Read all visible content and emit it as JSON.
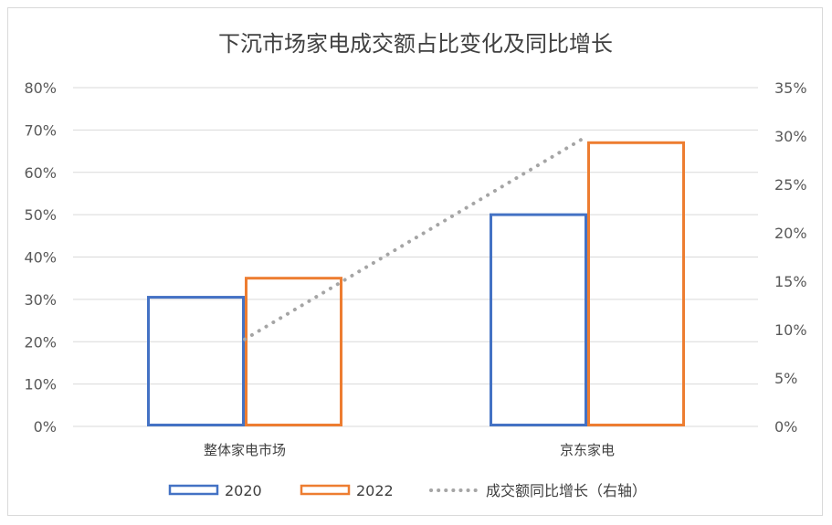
{
  "chart_data": {
    "type": "bar",
    "title": "下沉市场家电成交额占比变化及同比增长",
    "categories": [
      "整体家电市场",
      "京东家电"
    ],
    "series": [
      {
        "name": "2020",
        "type": "bar",
        "axis": "left",
        "values": [
          30.5,
          50
        ],
        "color": "#4472c4"
      },
      {
        "name": "2022",
        "type": "bar",
        "axis": "left",
        "values": [
          35,
          67
        ],
        "color": "#ed7d31"
      },
      {
        "name": "成交额同比增长（右轴）",
        "type": "line",
        "style": "dotted",
        "axis": "right",
        "values": [
          9,
          30
        ],
        "color": "#a5a5a5"
      }
    ],
    "y_left": {
      "ylim": [
        0,
        80
      ],
      "ticks": [
        "0%",
        "10%",
        "20%",
        "30%",
        "40%",
        "50%",
        "60%",
        "70%",
        "80%"
      ]
    },
    "y_right": {
      "ylim": [
        0,
        35
      ],
      "ticks": [
        "0%",
        "5%",
        "10%",
        "15%",
        "20%",
        "25%",
        "30%",
        "35%"
      ]
    },
    "unit": "%",
    "grid": true,
    "legend": "bottom"
  }
}
